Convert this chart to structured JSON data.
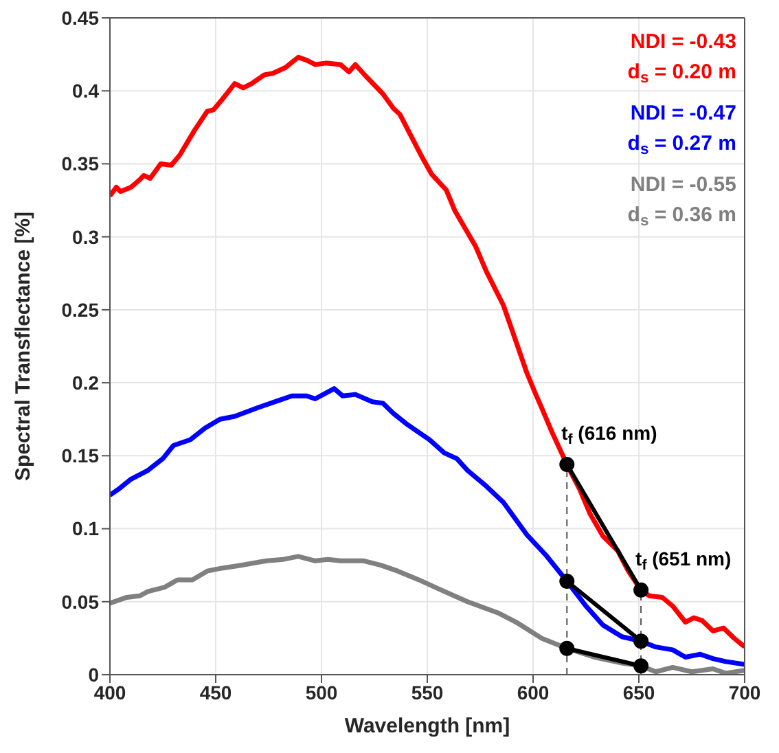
{
  "chart_data": {
    "type": "line",
    "xlabel": "Wavelength [nm]",
    "ylabel": "Spectral Transflectance [%]",
    "xlim": [
      400,
      700
    ],
    "ylim": [
      0,
      0.45
    ],
    "xticks": [
      400,
      450,
      500,
      550,
      600,
      650,
      700
    ],
    "yticks": [
      0,
      0.05,
      0.1,
      0.15,
      0.2,
      0.25,
      0.3,
      0.35,
      0.4,
      0.45
    ],
    "grid": true,
    "marker": "none",
    "line_style": "solid",
    "series": [
      {
        "color": "#ff0000",
        "x": [
          400,
          403,
          405,
          410,
          414,
          416,
          419,
          424,
          429,
          433,
          440,
          446,
          449,
          453,
          459,
          463,
          467,
          473,
          477,
          483,
          489,
          493,
          497,
          502,
          509,
          513,
          516,
          521,
          529,
          534,
          537,
          542,
          547,
          552,
          559,
          563,
          569,
          573,
          578,
          586,
          592,
          597,
          601,
          604,
          609,
          616,
          622,
          627,
          633,
          640,
          645,
          651,
          655,
          661,
          666,
          672,
          676,
          680,
          685,
          690,
          695,
          700
        ],
        "values": [
          0.328,
          0.334,
          0.331,
          0.334,
          0.339,
          0.342,
          0.34,
          0.35,
          0.349,
          0.356,
          0.373,
          0.386,
          0.387,
          0.394,
          0.405,
          0.402,
          0.405,
          0.411,
          0.412,
          0.416,
          0.423,
          0.421,
          0.418,
          0.419,
          0.418,
          0.413,
          0.418,
          0.41,
          0.398,
          0.388,
          0.384,
          0.37,
          0.356,
          0.343,
          0.332,
          0.318,
          0.303,
          0.293,
          0.276,
          0.253,
          0.228,
          0.207,
          0.193,
          0.183,
          0.166,
          0.144,
          0.127,
          0.11,
          0.095,
          0.085,
          0.071,
          0.058,
          0.054,
          0.053,
          0.047,
          0.036,
          0.039,
          0.037,
          0.03,
          0.032,
          0.025,
          0.019
        ]
      },
      {
        "color": "#0000ff",
        "x": [
          400,
          404,
          410,
          418,
          425,
          430,
          438,
          445,
          452,
          459,
          470,
          480,
          486,
          493,
          497,
          506,
          510,
          516,
          524,
          529,
          534,
          540,
          546,
          551,
          558,
          564,
          569,
          578,
          586,
          597,
          606,
          616,
          625,
          633,
          642,
          651,
          658,
          666,
          672,
          679,
          685,
          691,
          700
        ],
        "values": [
          0.123,
          0.127,
          0.134,
          0.14,
          0.148,
          0.157,
          0.161,
          0.169,
          0.175,
          0.177,
          0.183,
          0.188,
          0.191,
          0.191,
          0.189,
          0.196,
          0.191,
          0.192,
          0.187,
          0.186,
          0.179,
          0.172,
          0.166,
          0.161,
          0.152,
          0.148,
          0.14,
          0.129,
          0.118,
          0.096,
          0.082,
          0.064,
          0.047,
          0.034,
          0.026,
          0.023,
          0.019,
          0.017,
          0.012,
          0.014,
          0.011,
          0.009,
          0.007
        ]
      },
      {
        "color": "#808080",
        "x": [
          400,
          408,
          414,
          418,
          426,
          432,
          439,
          446,
          453,
          462,
          474,
          482,
          489,
          497,
          503,
          509,
          520,
          528,
          536,
          546,
          555,
          569,
          584,
          592,
          604,
          616,
          629,
          642,
          651,
          658,
          666,
          675,
          685,
          691,
          700
        ],
        "values": [
          0.049,
          0.053,
          0.054,
          0.057,
          0.06,
          0.065,
          0.065,
          0.071,
          0.073,
          0.075,
          0.078,
          0.079,
          0.081,
          0.078,
          0.079,
          0.078,
          0.078,
          0.075,
          0.071,
          0.065,
          0.059,
          0.05,
          0.042,
          0.036,
          0.025,
          0.018,
          0.012,
          0.008,
          0.006,
          0.002,
          0.005,
          0.002,
          0.004,
          0.001,
          0.003
        ]
      },
      {
        "color": "#000000",
        "marker": "circle",
        "x": [
          616,
          651
        ],
        "values": [
          0.144,
          0.058
        ]
      },
      {
        "color": "#000000",
        "marker": "circle",
        "x": [
          616,
          651
        ],
        "values": [
          0.064,
          0.023
        ]
      },
      {
        "color": "#000000",
        "marker": "circle",
        "x": [
          616,
          651
        ],
        "values": [
          0.018,
          0.006
        ]
      }
    ],
    "ref_lines": [
      {
        "axis": "x",
        "value": 616,
        "color": "#555555",
        "line_style": "dashed"
      },
      {
        "axis": "x",
        "value": 651,
        "color": "#555555",
        "line_style": "dashed"
      }
    ],
    "annotations": [
      "NDI = -0.43",
      "d$_{s}$ = 0.20 m",
      "NDI = -0.47",
      "d$_{s}$ = 0.27 m",
      "NDI = -0.55",
      "d$_{s}$ = 0.36 m",
      {
        "text": "t$_{f}$ (616 nm)",
        "x": 616,
        "y": 0.144
      },
      {
        "text": "t$_{f}$ (651 nm)",
        "x": 651,
        "y": 0.058
      }
    ]
  }
}
